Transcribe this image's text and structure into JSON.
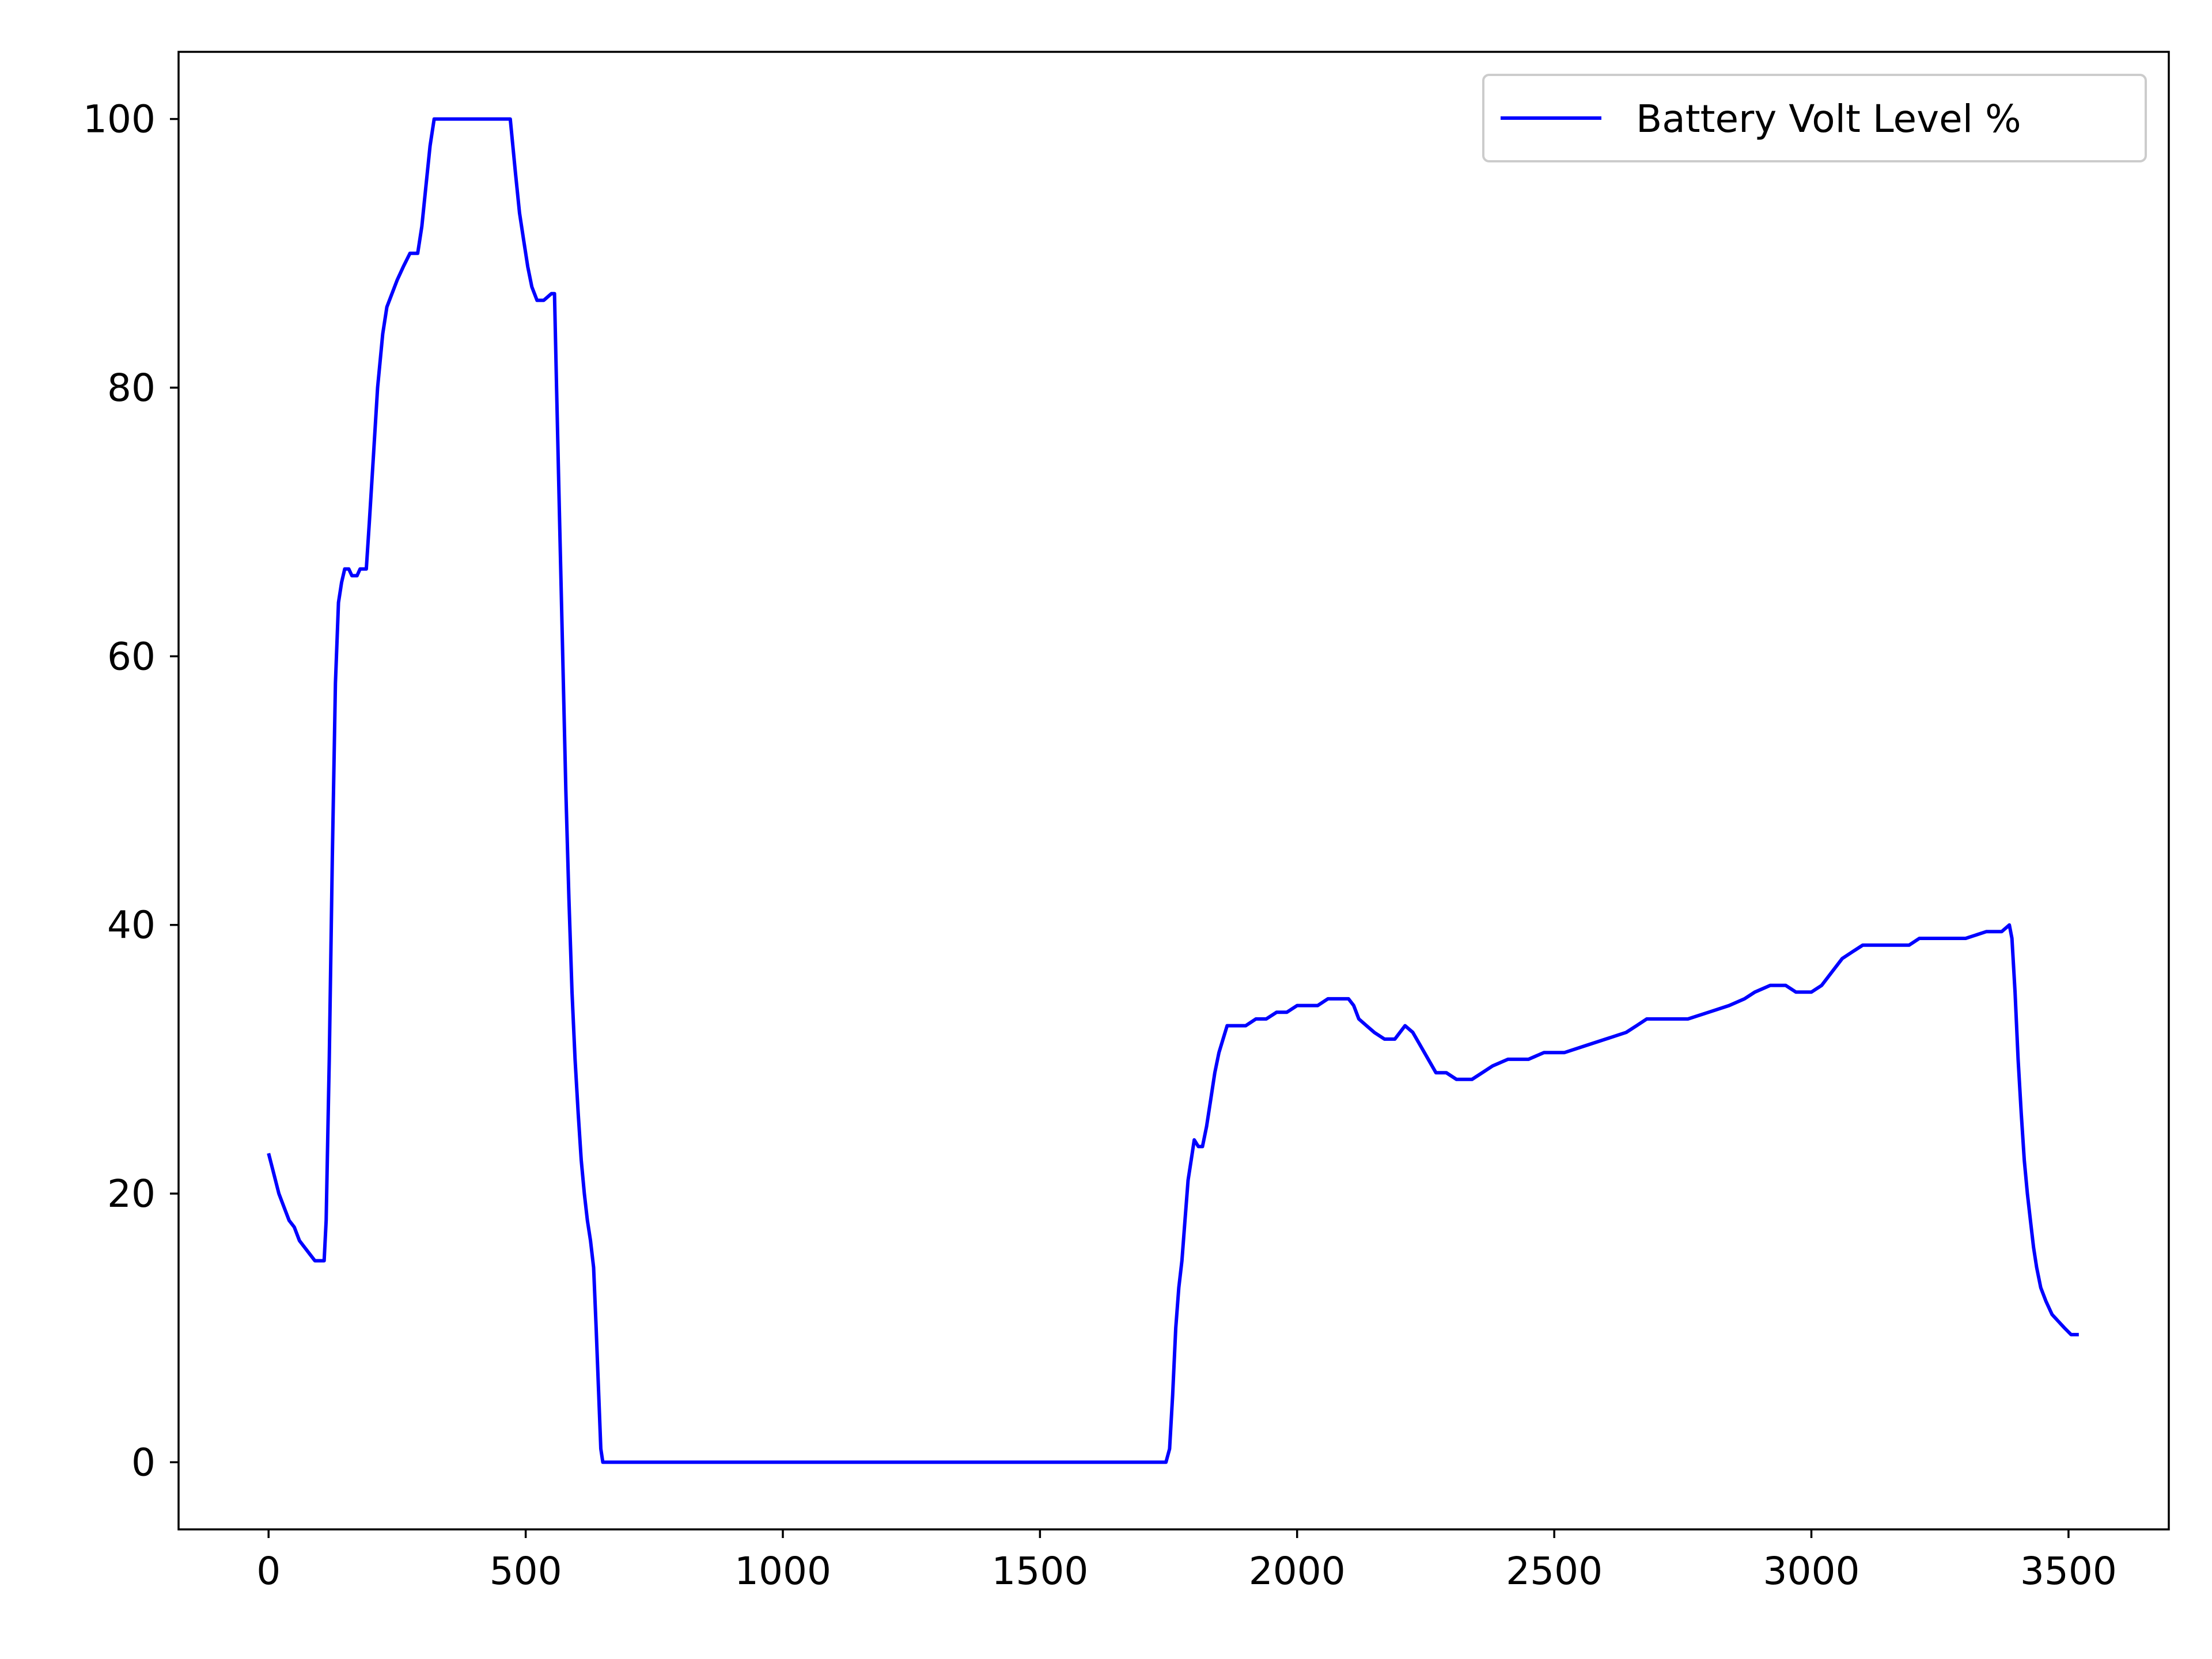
{
  "chart_data": {
    "type": "line",
    "title": "",
    "xlabel": "",
    "ylabel": "",
    "xlim": [
      -175,
      3695
    ],
    "ylim": [
      -5,
      105
    ],
    "xticks": [
      0,
      500,
      1000,
      1500,
      2000,
      2500,
      3000,
      3500
    ],
    "xtick_labels": [
      "0",
      "500",
      "1000",
      "1500",
      "2000",
      "2500",
      "3000",
      "3500"
    ],
    "yticks": [
      0,
      20,
      40,
      60,
      80,
      100
    ],
    "ytick_labels": [
      "0",
      "20",
      "40",
      "60",
      "80",
      "100"
    ],
    "grid": false,
    "legend_position": "top-right",
    "series": [
      {
        "name": "Battery Volt Level %",
        "color": "#0000ff",
        "points": [
          [
            0,
            23
          ],
          [
            10,
            21.5
          ],
          [
            20,
            20
          ],
          [
            30,
            19
          ],
          [
            40,
            18
          ],
          [
            50,
            17.5
          ],
          [
            60,
            16.5
          ],
          [
            70,
            16
          ],
          [
            80,
            15.5
          ],
          [
            90,
            15
          ],
          [
            100,
            15
          ],
          [
            108,
            15
          ],
          [
            112,
            18
          ],
          [
            118,
            30
          ],
          [
            124,
            45
          ],
          [
            130,
            58
          ],
          [
            136,
            64
          ],
          [
            142,
            65.5
          ],
          [
            148,
            66.5
          ],
          [
            156,
            66.5
          ],
          [
            162,
            66
          ],
          [
            172,
            66
          ],
          [
            178,
            66.5
          ],
          [
            190,
            66.5
          ],
          [
            196,
            70
          ],
          [
            204,
            75
          ],
          [
            212,
            80
          ],
          [
            222,
            84
          ],
          [
            230,
            86
          ],
          [
            240,
            87
          ],
          [
            250,
            88
          ],
          [
            262,
            89
          ],
          [
            275,
            90
          ],
          [
            290,
            90
          ],
          [
            298,
            92
          ],
          [
            306,
            95
          ],
          [
            314,
            98
          ],
          [
            322,
            100
          ],
          [
            380,
            100
          ],
          [
            410,
            100
          ],
          [
            435,
            100
          ],
          [
            470,
            100
          ],
          [
            480,
            96
          ],
          [
            488,
            93
          ],
          [
            496,
            91
          ],
          [
            504,
            89
          ],
          [
            512,
            87.5
          ],
          [
            522,
            86.5
          ],
          [
            535,
            86.5
          ],
          [
            550,
            87
          ],
          [
            556,
            87
          ],
          [
            560,
            80
          ],
          [
            566,
            70
          ],
          [
            572,
            60
          ],
          [
            578,
            50
          ],
          [
            584,
            42
          ],
          [
            590,
            35
          ],
          [
            596,
            30
          ],
          [
            602,
            26
          ],
          [
            608,
            22.5
          ],
          [
            614,
            20
          ],
          [
            620,
            18
          ],
          [
            626,
            16.5
          ],
          [
            632,
            14.5
          ],
          [
            637,
            10
          ],
          [
            642,
            5
          ],
          [
            646,
            1
          ],
          [
            650,
            0
          ],
          [
            1000,
            0
          ],
          [
            1300,
            0
          ],
          [
            1600,
            0
          ],
          [
            1745,
            0
          ],
          [
            1752,
            1
          ],
          [
            1758,
            5
          ],
          [
            1764,
            10
          ],
          [
            1770,
            13
          ],
          [
            1776,
            15
          ],
          [
            1782,
            18
          ],
          [
            1788,
            21
          ],
          [
            1794,
            22.5
          ],
          [
            1800,
            24
          ],
          [
            1808,
            23.5
          ],
          [
            1816,
            23.5
          ],
          [
            1824,
            25
          ],
          [
            1832,
            27
          ],
          [
            1840,
            29
          ],
          [
            1848,
            30.5
          ],
          [
            1856,
            31.5
          ],
          [
            1864,
            32.5
          ],
          [
            1880,
            32.5
          ],
          [
            1900,
            32.5
          ],
          [
            1920,
            33
          ],
          [
            1940,
            33
          ],
          [
            1960,
            33.5
          ],
          [
            1980,
            33.5
          ],
          [
            2000,
            34
          ],
          [
            2020,
            34
          ],
          [
            2040,
            34
          ],
          [
            2060,
            34.5
          ],
          [
            2080,
            34.5
          ],
          [
            2100,
            34.5
          ],
          [
            2110,
            34
          ],
          [
            2120,
            33
          ],
          [
            2135,
            32.5
          ],
          [
            2150,
            32
          ],
          [
            2170,
            31.5
          ],
          [
            2190,
            31.5
          ],
          [
            2210,
            32.5
          ],
          [
            2225,
            32
          ],
          [
            2240,
            31
          ],
          [
            2255,
            30
          ],
          [
            2270,
            29
          ],
          [
            2290,
            29
          ],
          [
            2310,
            28.5
          ],
          [
            2340,
            28.5
          ],
          [
            2360,
            29
          ],
          [
            2380,
            29.5
          ],
          [
            2410,
            30
          ],
          [
            2450,
            30
          ],
          [
            2480,
            30.5
          ],
          [
            2520,
            30.5
          ],
          [
            2560,
            31
          ],
          [
            2600,
            31.5
          ],
          [
            2640,
            32
          ],
          [
            2660,
            32.5
          ],
          [
            2680,
            33
          ],
          [
            2720,
            33
          ],
          [
            2760,
            33
          ],
          [
            2800,
            33.5
          ],
          [
            2840,
            34
          ],
          [
            2870,
            34.5
          ],
          [
            2890,
            35
          ],
          [
            2920,
            35.5
          ],
          [
            2950,
            35.5
          ],
          [
            2970,
            35
          ],
          [
            3000,
            35
          ],
          [
            3020,
            35.5
          ],
          [
            3040,
            36.5
          ],
          [
            3060,
            37.5
          ],
          [
            3080,
            38
          ],
          [
            3100,
            38.5
          ],
          [
            3150,
            38.5
          ],
          [
            3190,
            38.5
          ],
          [
            3210,
            39
          ],
          [
            3260,
            39
          ],
          [
            3300,
            39
          ],
          [
            3340,
            39.5
          ],
          [
            3370,
            39.5
          ],
          [
            3385,
            40
          ],
          [
            3390,
            39
          ],
          [
            3396,
            35
          ],
          [
            3402,
            30
          ],
          [
            3408,
            26
          ],
          [
            3414,
            22.5
          ],
          [
            3420,
            20
          ],
          [
            3426,
            18
          ],
          [
            3432,
            16
          ],
          [
            3438,
            14.5
          ],
          [
            3446,
            13
          ],
          [
            3456,
            12
          ],
          [
            3468,
            11
          ],
          [
            3480,
            10.5
          ],
          [
            3492,
            10
          ],
          [
            3505,
            9.5
          ],
          [
            3520,
            9.5
          ]
        ]
      }
    ]
  }
}
